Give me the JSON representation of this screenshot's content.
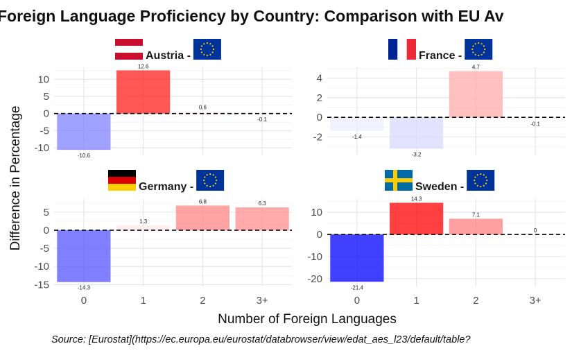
{
  "chart_data": {
    "type": "bar",
    "title": "Foreign Language Proficiency by Country: Comparison with EU Av",
    "xlabel": "Number of Foreign Languages",
    "ylabel": "Difference in Percentage",
    "caption": "Source: [Eurostat](https://ec.europa.eu/eurostat/databrowser/view/edat_aes_l23/default/table?",
    "categories": [
      "0",
      "1",
      "2",
      "3+"
    ],
    "reference_line": {
      "y": 0,
      "style": "dashed"
    },
    "grid": true,
    "fill_scale": {
      "negative": "#0000ff",
      "neutral": "#ffffff",
      "positive": "#ff0000"
    },
    "panels": [
      {
        "country": "Austria",
        "strip_label": "Austria -",
        "flag_icon": "flag-austria-icon",
        "eu_flag_icon": "flag-eu-icon",
        "ylim": [
          -12,
          13.5
        ],
        "yticks": [
          10,
          5,
          0,
          -5,
          -10
        ],
        "values": [
          -10.6,
          12.6,
          0.6,
          -0.1
        ],
        "labels": [
          "-10.6",
          "12.6",
          "0.6",
          "-0.1"
        ]
      },
      {
        "country": "France",
        "strip_label": "France -",
        "flag_icon": "flag-france-icon",
        "eu_flag_icon": "flag-eu-icon",
        "ylim": [
          -3.8,
          5.1
        ],
        "yticks": [
          4,
          2,
          0,
          -2
        ],
        "values": [
          -1.4,
          -3.2,
          4.7,
          -0.1
        ],
        "labels": [
          "-1.4",
          "-3.2",
          "4.7",
          "-0.1"
        ]
      },
      {
        "country": "Germany",
        "strip_label": "Germany -",
        "flag_icon": "flag-germany-icon",
        "eu_flag_icon": "flag-eu-icon",
        "ylim": [
          -15.5,
          8.6
        ],
        "yticks": [
          5,
          0,
          -5,
          -10,
          -15
        ],
        "values": [
          -14.3,
          1.3,
          6.8,
          6.3
        ],
        "labels": [
          "-14.3",
          "1.3",
          "6.8",
          "6.3"
        ]
      },
      {
        "country": "Sweden",
        "strip_label": "Sweden -",
        "flag_icon": "flag-sweden-icon",
        "eu_flag_icon": "flag-eu-icon",
        "ylim": [
          -23.5,
          16
        ],
        "yticks": [
          10,
          0,
          -10,
          -20
        ],
        "values": [
          -21.4,
          14.3,
          7.1,
          0
        ],
        "labels": [
          "-21.4",
          "14.3",
          "7.1",
          "0"
        ]
      }
    ]
  }
}
